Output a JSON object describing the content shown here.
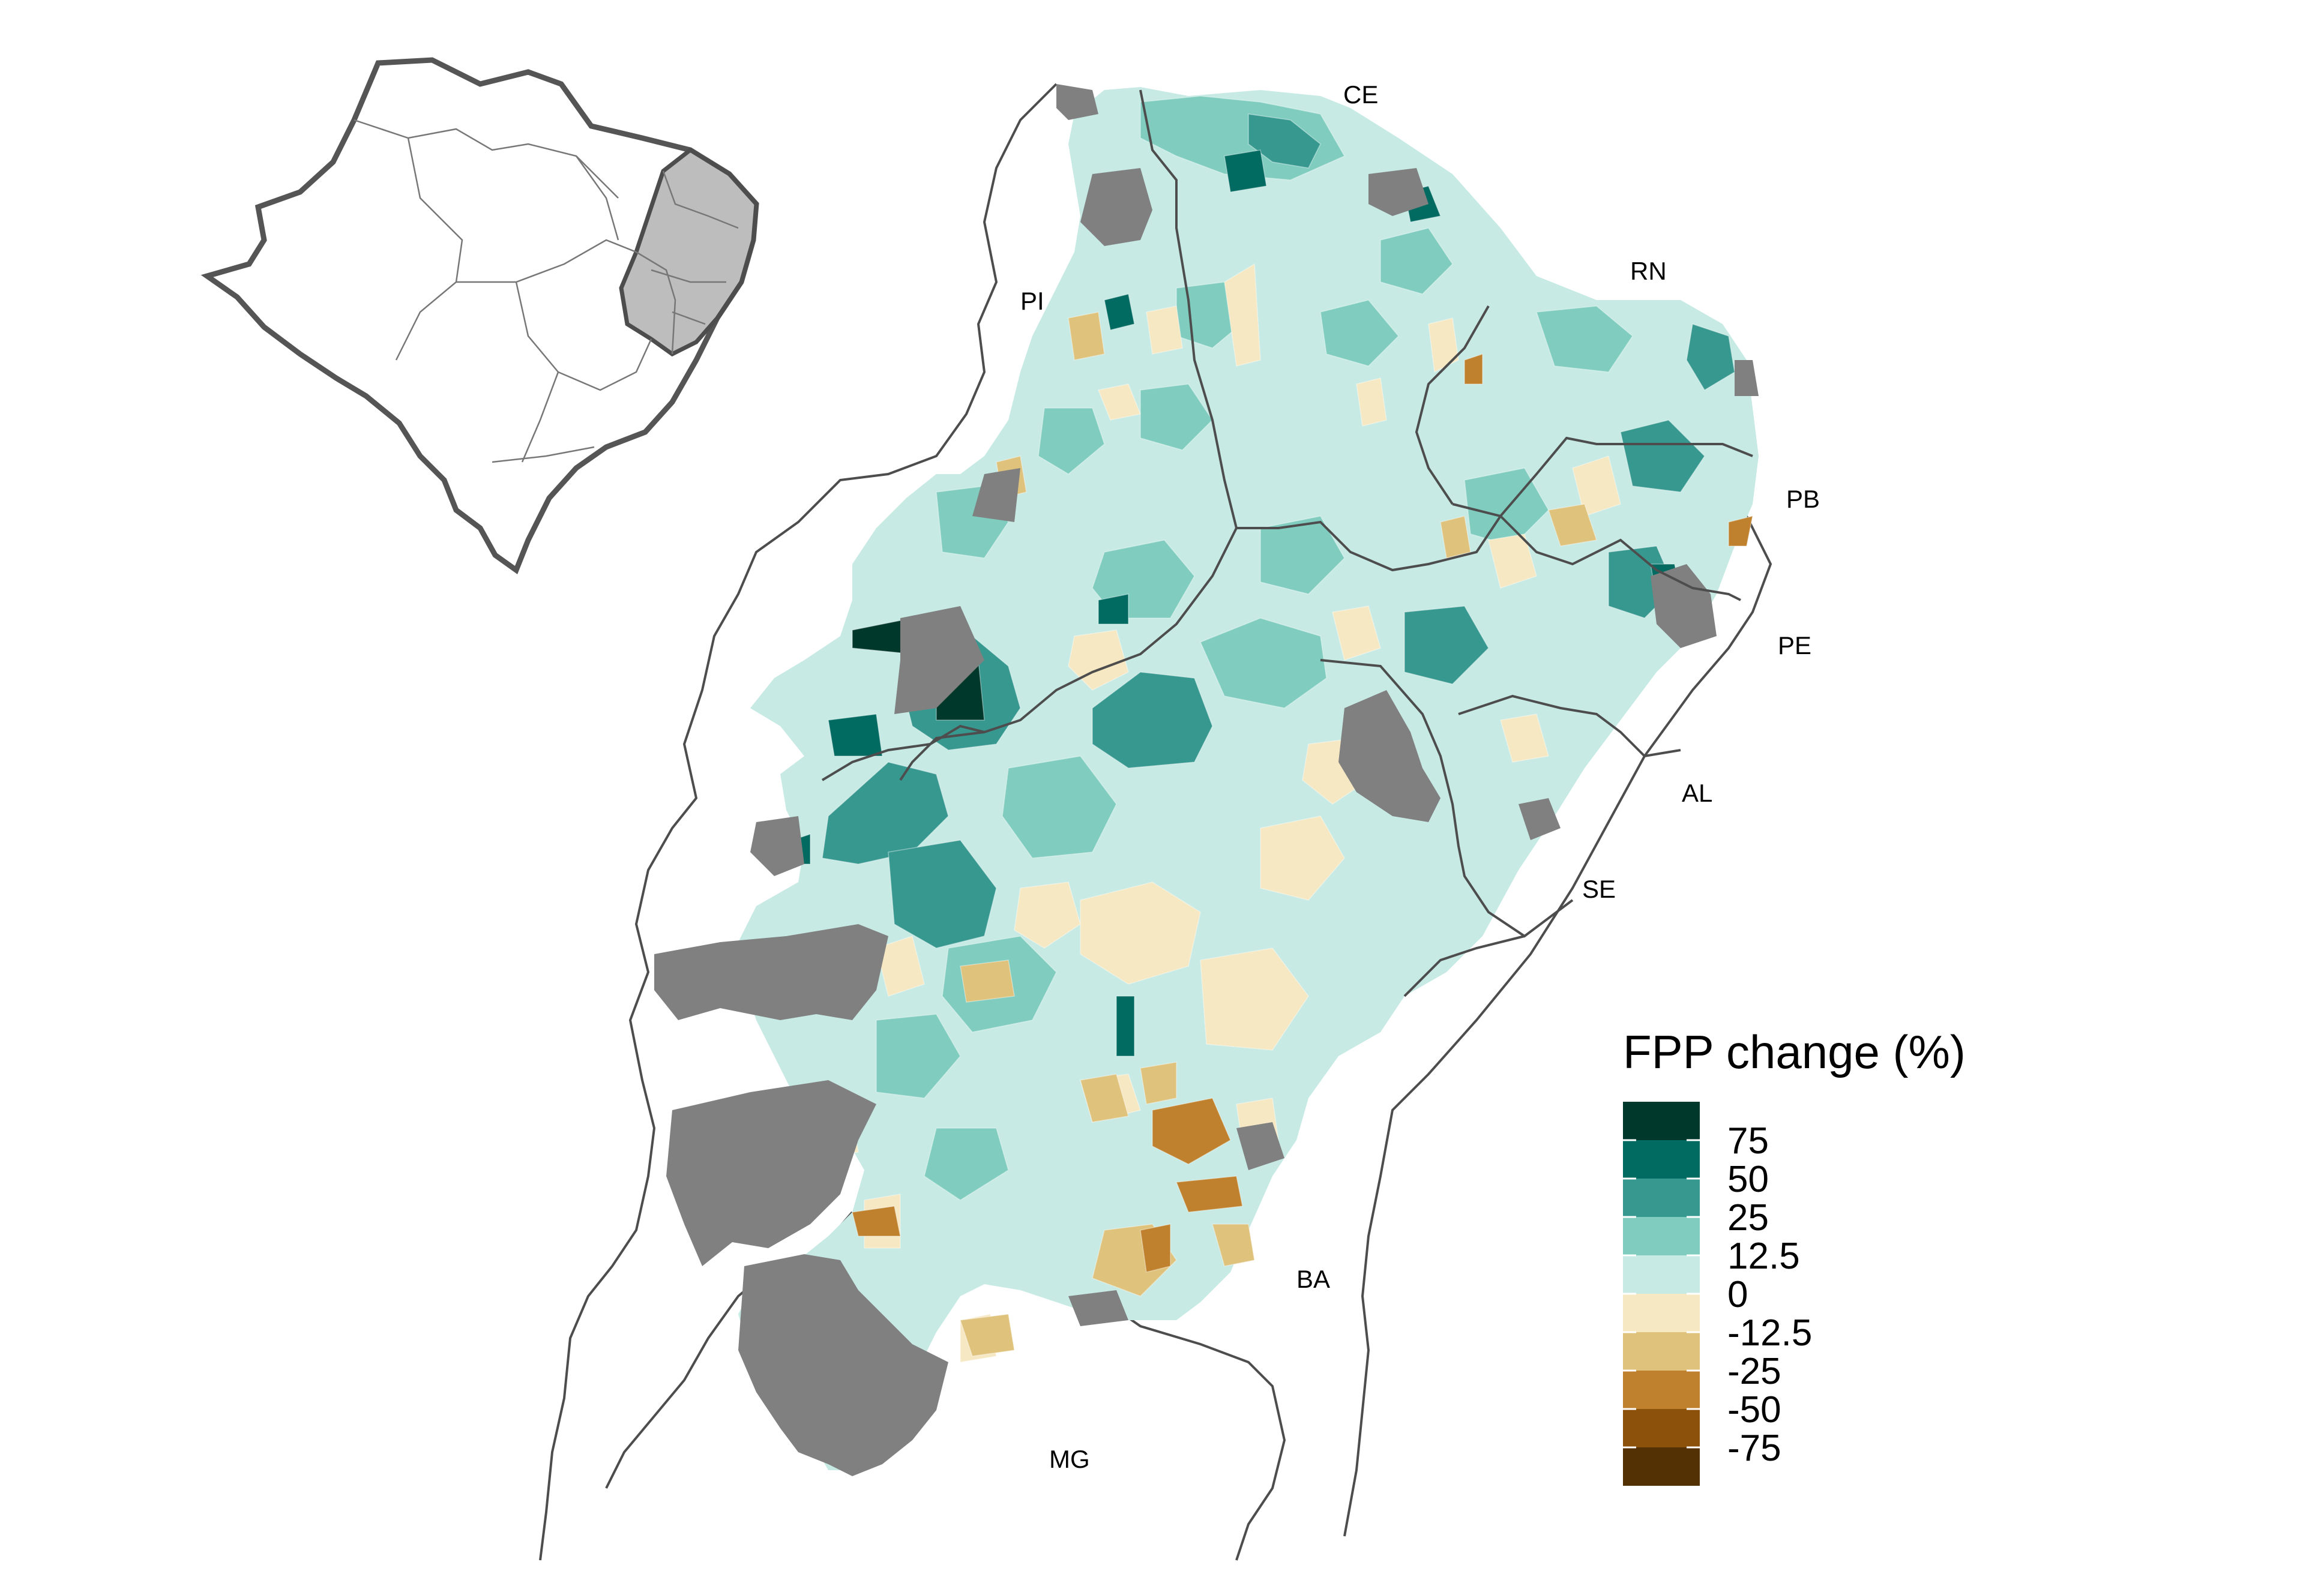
{
  "legend": {
    "title": "FPP change (%)",
    "bins": [
      {
        "color": "#00392b"
      },
      {
        "color": "#016b62"
      },
      {
        "color": "#379890"
      },
      {
        "color": "#80cdc0"
      },
      {
        "color": "#c7eae4"
      },
      {
        "color": "#f6e8c3"
      },
      {
        "color": "#dfc27c"
      },
      {
        "color": "#bf812d"
      },
      {
        "color": "#8c510a"
      },
      {
        "color": "#543005"
      }
    ],
    "ticks": [
      "75",
      "50",
      "25",
      "12.5",
      "0",
      "-12.5",
      "-25",
      "-50",
      "-75"
    ]
  },
  "states": {
    "ce": "CE",
    "rn": "RN",
    "pi": "PI",
    "pb": "PB",
    "pe": "PE",
    "al": "AL",
    "se": "SE",
    "ba": "BA",
    "mg": "MG"
  },
  "colors": {
    "no_data": "#808080",
    "inset_region": "#bdbdbd",
    "border": "#4d4d4d"
  },
  "inset": {
    "region": "Brazil (Northeast highlighted)"
  }
}
